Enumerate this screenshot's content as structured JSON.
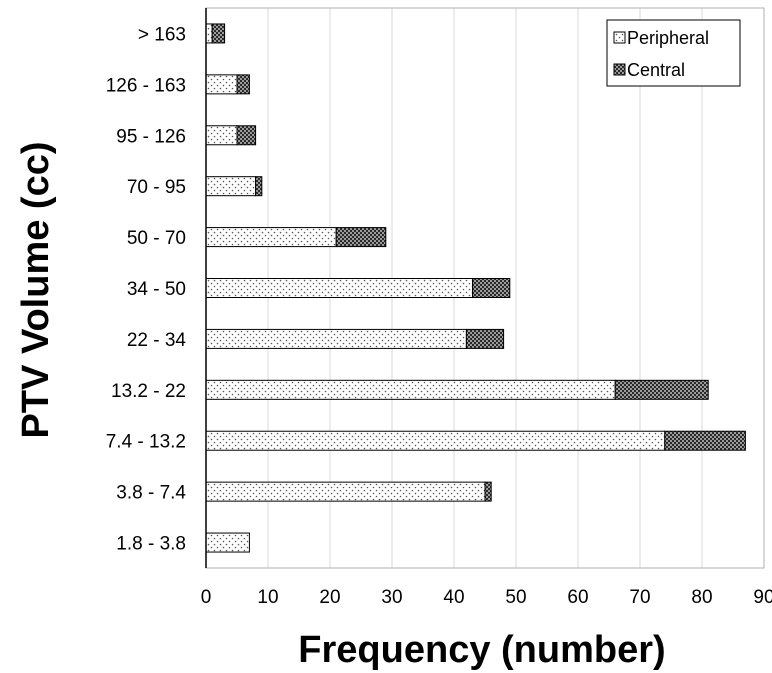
{
  "chart_data": {
    "type": "bar",
    "orientation": "horizontal",
    "stacked": true,
    "categories": [
      "1.8 - 3.8",
      "3.8 - 7.4",
      "7.4 - 13.2",
      "13.2 - 22",
      "22 - 34",
      "34 - 50",
      "50 - 70",
      "70 - 95",
      "95 - 126",
      "126 - 163",
      "> 163"
    ],
    "series": [
      {
        "name": "Peripheral",
        "values": [
          7,
          45,
          74,
          66,
          42,
          43,
          21,
          8,
          5,
          5,
          1
        ],
        "pattern": "dotted",
        "color": "#ffffff"
      },
      {
        "name": "Central",
        "values": [
          0,
          1,
          13,
          15,
          6,
          6,
          8,
          1,
          3,
          2,
          2
        ],
        "pattern": "crosshatch",
        "color": "#8a8a8a"
      }
    ],
    "xlabel": "Frequency (number)",
    "ylabel": "PTV Volume (cc)",
    "xlim": [
      0,
      90
    ],
    "xticks": [
      0,
      10,
      20,
      30,
      40,
      50,
      60,
      70,
      80,
      90
    ],
    "grid": "vertical",
    "legend_position": "top-right"
  }
}
